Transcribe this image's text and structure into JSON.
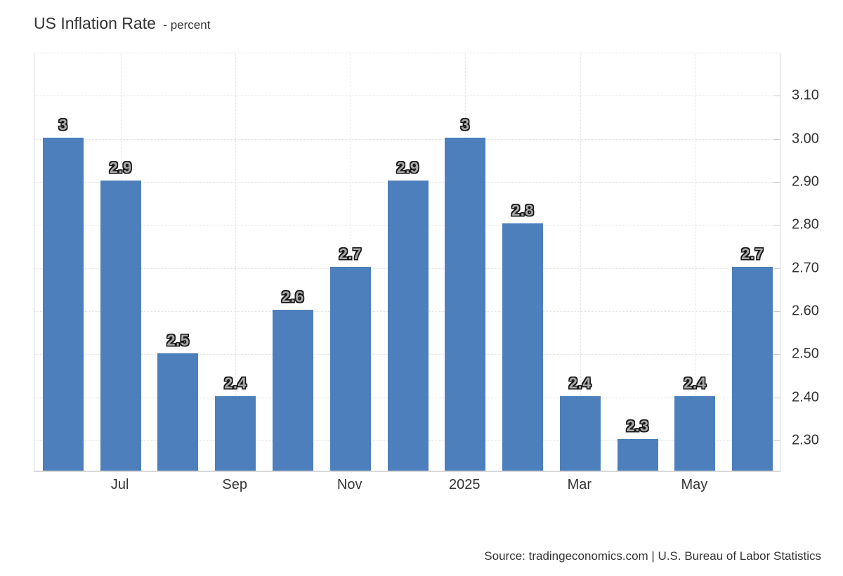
{
  "title": {
    "main": "US Inflation Rate",
    "sub": "- percent"
  },
  "source_line": "Source: tradingeconomics.com | U.S. Bureau of Labor Statistics",
  "colors": {
    "bar": "#4d7fbc",
    "gridline": "#e0e0e0",
    "axis_border": "#d8d8d8",
    "axis_text": "#333333",
    "bar_label_fill": "#a8a8a8",
    "bar_label_outline": "#161616"
  },
  "chart_data": {
    "type": "bar",
    "title": "US Inflation Rate",
    "ylabel": "percent",
    "values": [
      3.0,
      2.9,
      2.5,
      2.4,
      2.6,
      2.7,
      2.9,
      3.0,
      2.8,
      2.4,
      2.3,
      2.4,
      2.7
    ],
    "bar_value_labels": [
      "3",
      "2.9",
      "2.5",
      "2.4",
      "2.6",
      "2.7",
      "2.9",
      "3",
      "2.8",
      "2.4",
      "2.3",
      "2.4",
      "2.7"
    ],
    "x_ticks": [
      {
        "bar_index": 1,
        "label": "Jul"
      },
      {
        "bar_index": 3,
        "label": "Sep"
      },
      {
        "bar_index": 5,
        "label": "Nov"
      },
      {
        "bar_index": 7,
        "label": "2025"
      },
      {
        "bar_index": 9,
        "label": "Mar"
      },
      {
        "bar_index": 11,
        "label": "May"
      }
    ],
    "y_ticks": [
      {
        "value": 2.3,
        "label": "2.30"
      },
      {
        "value": 2.4,
        "label": "2.40"
      },
      {
        "value": 2.5,
        "label": "2.50"
      },
      {
        "value": 2.6,
        "label": "2.60"
      },
      {
        "value": 2.7,
        "label": "2.70"
      },
      {
        "value": 2.8,
        "label": "2.80"
      },
      {
        "value": 2.9,
        "label": "2.90"
      },
      {
        "value": 3.0,
        "label": "3.00"
      },
      {
        "value": 3.1,
        "label": "3.10"
      }
    ],
    "y_gridlines": [
      2.3,
      2.4,
      2.5,
      2.6,
      2.7,
      2.8,
      2.9,
      3.0,
      3.1,
      3.2
    ],
    "ylim": [
      2.227,
      3.2
    ],
    "grid": "dotted",
    "legend": "none",
    "y_axis_side": "right"
  }
}
